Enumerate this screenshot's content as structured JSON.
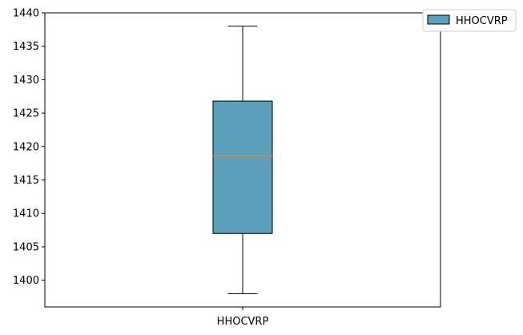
{
  "chart_data": {
    "type": "box",
    "categories": [
      "HHOCVRP"
    ],
    "series": [
      {
        "name": "HHOCVRP",
        "whisker_low": 1398.0,
        "q1": 1407.0,
        "median": 1418.6,
        "q3": 1426.8,
        "whisker_high": 1438.0,
        "color": "#5b9fba"
      }
    ],
    "ylim": [
      1396.0,
      1440.0
    ],
    "yticks": [
      1400,
      1405,
      1410,
      1415,
      1420,
      1425,
      1430,
      1435,
      1440
    ],
    "median_color": "#e0893f",
    "title": "",
    "xlabel": "",
    "ylabel": "",
    "legend": {
      "position": "top-right",
      "entries": [
        "HHOCVRP"
      ]
    },
    "grid": false
  }
}
